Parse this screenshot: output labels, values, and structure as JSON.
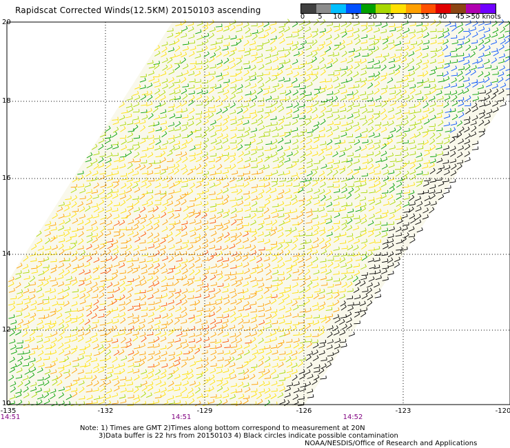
{
  "title": "Rapidscat Corrected Winds(12.5KM) 20150103 ascending",
  "scale": {
    "labels": [
      "0",
      "5",
      "10",
      "15",
      "20",
      "25",
      "30",
      "35",
      "40",
      "45",
      ">50 knots"
    ],
    "colors": [
      "#404040",
      "#8c8c8c",
      "#00bfff",
      "#0050ff",
      "#00a000",
      "#a8d800",
      "#ffe000",
      "#ffa000",
      "#ff5000",
      "#e00000",
      "#8b4513",
      "#b000b0",
      "#7000ff"
    ]
  },
  "axes": {
    "y_labels": [
      "20",
      "18",
      "16",
      "14",
      "12",
      "10"
    ],
    "x_labels": [
      "-135",
      "-132",
      "-129",
      "-126",
      "-123",
      "-120"
    ],
    "times": [
      "14:51",
      "14:51",
      "14:52"
    ]
  },
  "notes": {
    "line1": "Note: 1) Times are GMT 2)Times along bottom correspond to measurement at 20N",
    "line2": "3)Data buffer is 22 hrs from 20150103 4) Black circles indicate possible contamination",
    "credit": "NOAA/NESDIS/Office of Research and Applications"
  },
  "map_data": {
    "lat_range": [
      10,
      20
    ],
    "lon_range": [
      -135,
      -120
    ],
    "wind_speed_range_knots": [
      0,
      50
    ]
  }
}
